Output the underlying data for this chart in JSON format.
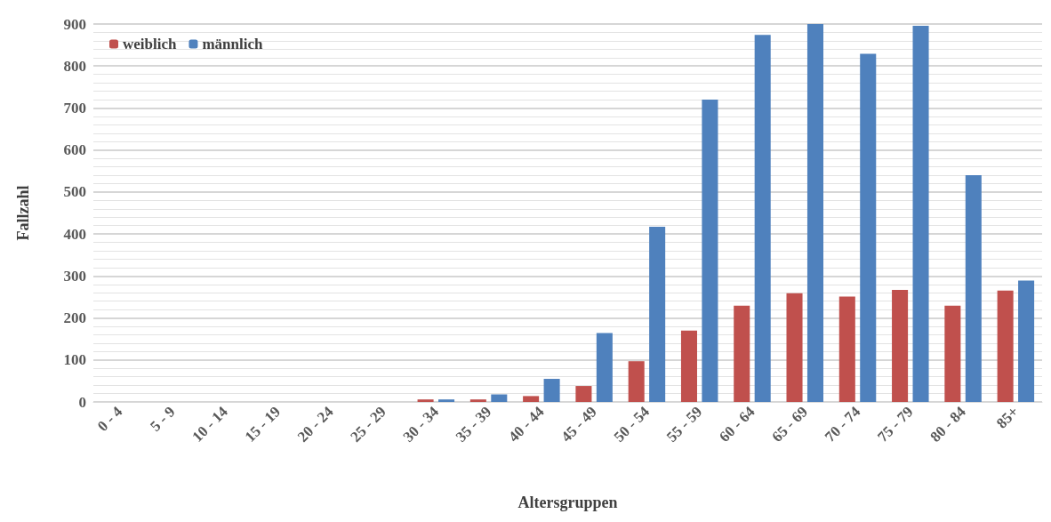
{
  "chart_data": {
    "type": "bar",
    "xlabel": "Altersgruppen",
    "ylabel": "Fallzahl",
    "categories": [
      "0 - 4",
      "5 - 9",
      "10 - 14",
      "15 - 19",
      "20 - 24",
      "25 - 29",
      "30 - 34",
      "35 - 39",
      "40 - 44",
      "45 - 49",
      "50 - 54",
      "55 - 59",
      "60 - 64",
      "65 - 69",
      "70 - 74",
      "75 - 79",
      "80 - 84",
      "85+"
    ],
    "series": [
      {
        "name": "weiblich",
        "color": "#c0504d",
        "values": [
          0,
          0,
          0,
          0,
          0,
          0,
          6,
          6,
          14,
          38,
          97,
          170,
          229,
          259,
          251,
          267,
          229,
          265
        ]
      },
      {
        "name": "männlich",
        "color": "#4f81bd",
        "values": [
          0,
          0,
          0,
          0,
          0,
          0,
          6,
          18,
          55,
          164,
          417,
          720,
          874,
          900,
          829,
          896,
          540,
          289
        ]
      }
    ],
    "ylim": [
      0,
      900
    ],
    "yticks": [
      0,
      100,
      200,
      300,
      400,
      500,
      600,
      700,
      800,
      900
    ],
    "grid": "y",
    "legend": "top left"
  }
}
